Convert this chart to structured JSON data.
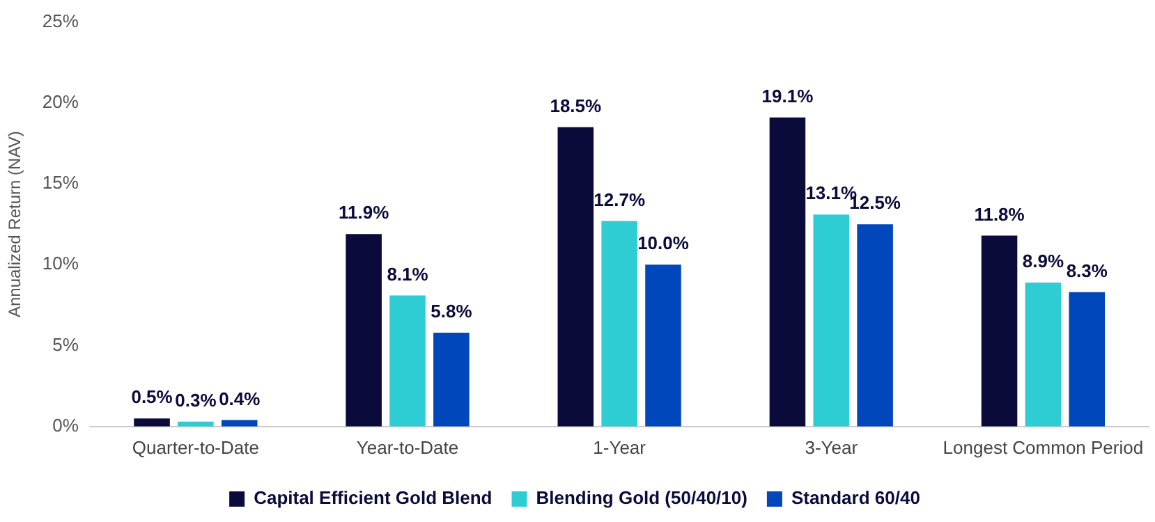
{
  "chart_data": {
    "type": "bar",
    "ylabel": "Annualized Return (NAV)",
    "categories": [
      "Quarter-to-Date",
      "Year-to-Date",
      "1-Year",
      "3-Year",
      "Longest Common Period"
    ],
    "series": [
      {
        "name": "Capital Efficient Gold Blend",
        "color": "#0b0b3b",
        "values": [
          0.5,
          11.9,
          18.5,
          19.1,
          11.8
        ],
        "value_labels": [
          "0.5%",
          "11.9%",
          "18.5%",
          "19.1%",
          "11.8%"
        ]
      },
      {
        "name": "Blending Gold (50/40/10)",
        "color": "#2ecdd3",
        "values": [
          0.3,
          8.1,
          12.7,
          13.1,
          8.9
        ],
        "value_labels": [
          "0.3%",
          "8.1%",
          "12.7%",
          "13.1%",
          "8.9%"
        ]
      },
      {
        "name": "Standard 60/40",
        "color": "#0047bb",
        "values": [
          0.4,
          5.8,
          10.0,
          12.5,
          8.3
        ],
        "value_labels": [
          "0.4%",
          "5.8%",
          "10.0%",
          "12.5%",
          "8.3%"
        ]
      }
    ],
    "ylim": [
      0,
      25
    ],
    "yticks": [
      {
        "value": 0,
        "label": "0%"
      },
      {
        "value": 5,
        "label": "5%"
      },
      {
        "value": 10,
        "label": "10%"
      },
      {
        "value": 15,
        "label": "15%"
      },
      {
        "value": 20,
        "label": "20%"
      },
      {
        "value": 25,
        "label": "25%"
      }
    ],
    "grid": false,
    "legend": "bottom"
  }
}
